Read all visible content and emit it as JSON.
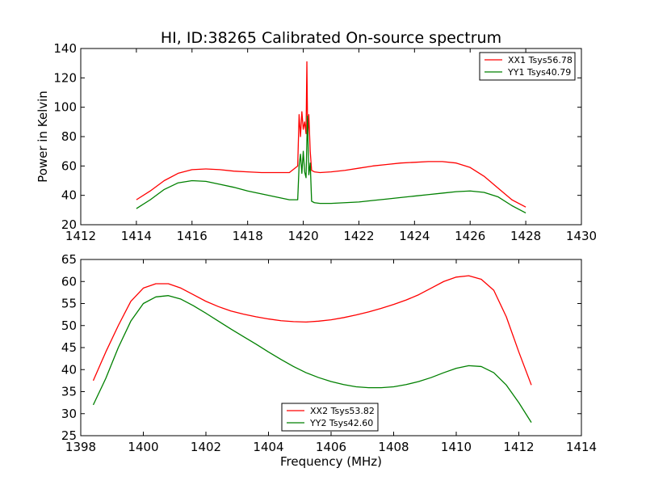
{
  "figure": {
    "title": "HI, ID:38265 Calibrated On-source spectrum",
    "colors": {
      "red": "#ff0000",
      "green": "#008000"
    }
  },
  "chart_data": [
    {
      "type": "line",
      "title": "HI, ID:38265 Calibrated On-source spectrum",
      "xlabel": "",
      "ylabel": "Power in Kelvin",
      "xlim": [
        1412,
        1430
      ],
      "ylim": [
        20,
        140
      ],
      "xticks": [
        1412,
        1414,
        1416,
        1418,
        1420,
        1422,
        1424,
        1426,
        1428,
        1430
      ],
      "yticks": [
        20,
        40,
        60,
        80,
        100,
        120,
        140
      ],
      "legend": "top-right",
      "grid": false,
      "series": [
        {
          "name": "XX1 Tsys56.78",
          "color": "#ff0000",
          "x": [
            1414.0,
            1414.5,
            1415.0,
            1415.5,
            1416.0,
            1416.5,
            1417.0,
            1417.5,
            1418.0,
            1418.5,
            1419.0,
            1419.5,
            1419.8,
            1419.85,
            1419.9,
            1419.95,
            1420.0,
            1420.05,
            1420.1,
            1420.13,
            1420.16,
            1420.2,
            1420.25,
            1420.3,
            1420.4,
            1420.6,
            1421.0,
            1421.5,
            1422.0,
            1422.5,
            1423.0,
            1423.5,
            1424.0,
            1424.5,
            1425.0,
            1425.5,
            1426.0,
            1426.5,
            1427.0,
            1427.5,
            1428.0
          ],
          "y": [
            37,
            43,
            50,
            55,
            57.5,
            58,
            57.5,
            56.5,
            56,
            55.5,
            55.5,
            55.5,
            60,
            95,
            80,
            97,
            85,
            90,
            82,
            131,
            78,
            95,
            70,
            57,
            56,
            55.5,
            56,
            57,
            58.5,
            60,
            61,
            62,
            62.5,
            63,
            63,
            62,
            59,
            53,
            45,
            37,
            32
          ]
        },
        {
          "name": "YY1 Tsys40.79",
          "color": "#008000",
          "x": [
            1414.0,
            1414.5,
            1415.0,
            1415.5,
            1416.0,
            1416.5,
            1417.0,
            1417.5,
            1418.0,
            1418.5,
            1419.0,
            1419.5,
            1419.8,
            1419.85,
            1419.9,
            1419.95,
            1420.0,
            1420.05,
            1420.1,
            1420.15,
            1420.2,
            1420.25,
            1420.3,
            1420.4,
            1420.6,
            1421.0,
            1421.5,
            1422.0,
            1422.5,
            1423.0,
            1423.5,
            1424.0,
            1424.5,
            1425.0,
            1425.5,
            1426.0,
            1426.5,
            1427.0,
            1427.5,
            1428.0
          ],
          "y": [
            31,
            37,
            44,
            48.5,
            50,
            49.5,
            47.5,
            45.5,
            43,
            41,
            39,
            37,
            37,
            60,
            68,
            55,
            70,
            56,
            52,
            94,
            54,
            62,
            36,
            35,
            34.5,
            34.5,
            35,
            35.5,
            36.5,
            37.5,
            38.5,
            39.5,
            40.5,
            41.5,
            42.5,
            43,
            42,
            39,
            33,
            28
          ]
        }
      ]
    },
    {
      "type": "line",
      "title": "",
      "xlabel": "Frequency (MHz)",
      "ylabel": "",
      "xlim": [
        1398,
        1414
      ],
      "ylim": [
        25,
        65
      ],
      "xticks": [
        1398,
        1400,
        1402,
        1404,
        1406,
        1408,
        1410,
        1412,
        1414
      ],
      "yticks": [
        25,
        30,
        35,
        40,
        45,
        50,
        55,
        60,
        65
      ],
      "legend": "bottom-center",
      "grid": false,
      "series": [
        {
          "name": "XX2 Tsys53.82",
          "color": "#ff0000",
          "x": [
            1398.4,
            1398.8,
            1399.2,
            1399.6,
            1400.0,
            1400.4,
            1400.8,
            1401.2,
            1401.6,
            1402.0,
            1402.4,
            1402.8,
            1403.2,
            1403.6,
            1404.0,
            1404.4,
            1404.8,
            1405.2,
            1405.6,
            1406.0,
            1406.4,
            1406.8,
            1407.2,
            1407.6,
            1408.0,
            1408.4,
            1408.8,
            1409.2,
            1409.6,
            1410.0,
            1410.4,
            1410.8,
            1411.2,
            1411.6,
            1412.0,
            1412.4
          ],
          "y": [
            37.5,
            44,
            50,
            55.5,
            58.5,
            59.5,
            59.5,
            58.5,
            57,
            55.5,
            54.3,
            53.3,
            52.6,
            52,
            51.5,
            51.1,
            50.9,
            50.8,
            51,
            51.3,
            51.8,
            52.4,
            53.1,
            53.9,
            54.8,
            55.8,
            57,
            58.5,
            60,
            61,
            61.3,
            60.5,
            58,
            52,
            44,
            36.5
          ]
        },
        {
          "name": "YY2 Tsys42.60",
          "color": "#008000",
          "x": [
            1398.4,
            1398.8,
            1399.2,
            1399.6,
            1400.0,
            1400.4,
            1400.8,
            1401.2,
            1401.6,
            1402.0,
            1402.4,
            1402.8,
            1403.2,
            1403.6,
            1404.0,
            1404.4,
            1404.8,
            1405.2,
            1405.6,
            1406.0,
            1406.4,
            1406.8,
            1407.2,
            1407.6,
            1408.0,
            1408.4,
            1408.8,
            1409.2,
            1409.6,
            1410.0,
            1410.4,
            1410.8,
            1411.2,
            1411.6,
            1412.0,
            1412.4
          ],
          "y": [
            32,
            38,
            45,
            51,
            55,
            56.5,
            56.8,
            56,
            54.5,
            52.8,
            51,
            49.2,
            47.5,
            45.8,
            44,
            42.3,
            40.7,
            39.3,
            38.2,
            37.3,
            36.6,
            36.1,
            35.9,
            35.9,
            36.1,
            36.6,
            37.3,
            38.2,
            39.3,
            40.3,
            40.9,
            40.7,
            39.3,
            36.5,
            32.5,
            28
          ]
        }
      ]
    }
  ]
}
